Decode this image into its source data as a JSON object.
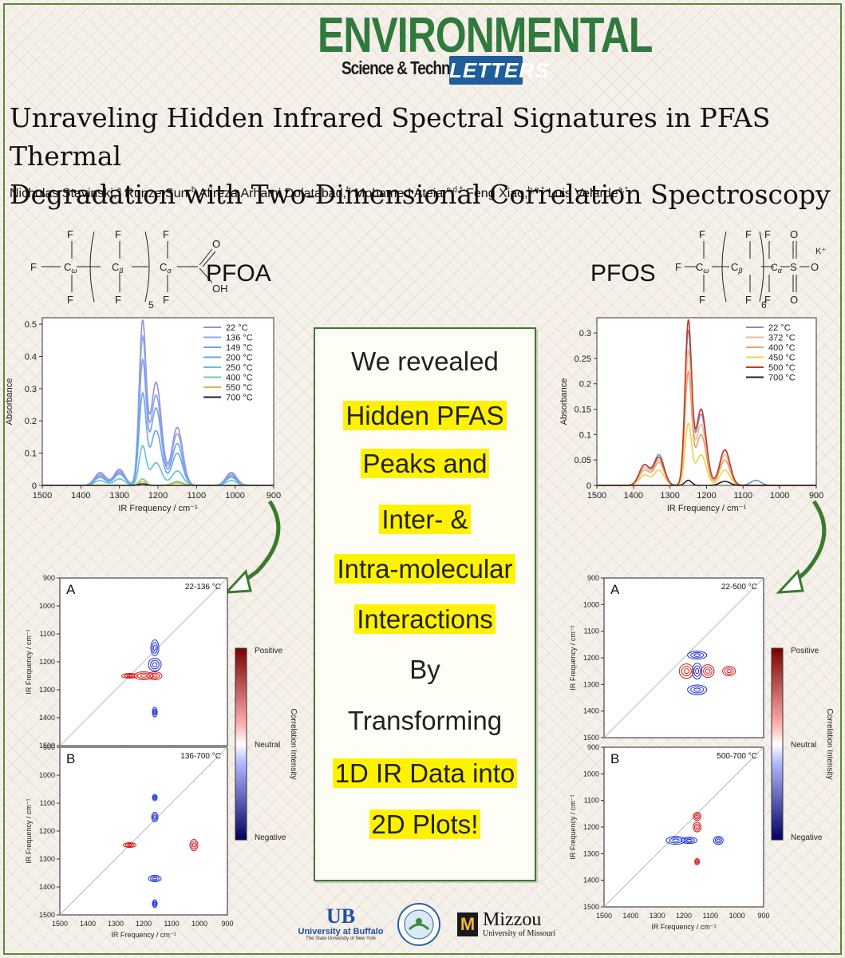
{
  "journal": {
    "line1": "ENVIRONMENTAL",
    "line2": "Science & Technology",
    "line3": "LETTERS"
  },
  "title_line1": "Unraveling Hidden Infrared Spectral Signatures in PFAS Thermal",
  "title_line2": "Degradation with Two-Dimensional Correlation Spectroscopy",
  "authors": [
    {
      "name": "Nicholas Stavinski,",
      "sup": "a"
    },
    {
      "name": "Runze Sun,",
      "sup": "b"
    },
    {
      "name": "Alireza Arhami Dolatabad,",
      "sup": "b"
    },
    {
      "name": "Mohamed Ateia,",
      "sup": "c,d,*"
    },
    {
      "name": "Feng Xiao,",
      "sup": "b,e,*"
    },
    {
      "name": "Luis Velarde",
      "sup": "a,*"
    }
  ],
  "center_box": {
    "l1": "We revealed",
    "l2": "Hidden PFAS",
    "l3": "Peaks and",
    "l4": "Inter- &",
    "l5": "Intra-molecular",
    "l6": "Interactions",
    "l7": "By",
    "l8": "Transforming",
    "l9": "1D IR Data into",
    "l10": "2D Plots!"
  },
  "structures": {
    "pfoa": {
      "name": "PFOA",
      "sub": "5"
    },
    "pfos": {
      "name": "PFOS",
      "sub": "6",
      "cation": "K⁺"
    },
    "atoms": {
      "F": "F",
      "O": "O",
      "OH": "OH",
      "S": "S"
    }
  },
  "colorbar": {
    "top": "Positive",
    "mid": "Neutral",
    "bottom": "Negative",
    "title": "Correlation Intensity"
  },
  "spectra": {
    "xlabel": "IR Frequency / cm⁻¹",
    "ylabel": "Absorbance",
    "xticks": [
      "1500",
      "1400",
      "1300",
      "1200",
      "1100",
      "1000",
      "900"
    ]
  },
  "maps": {
    "xlabel": "IR Frequency / cm⁻¹",
    "ylabel": "IR Frequency / cm⁻¹",
    "ticks": [
      "900",
      "1000",
      "1100",
      "1200",
      "1300",
      "1400",
      "1500"
    ],
    "xticks": [
      "1500",
      "1400",
      "1300",
      "1200",
      "1100",
      "1000",
      "900"
    ],
    "left_A": {
      "letter": "A",
      "range": "22-136 °C"
    },
    "left_B": {
      "letter": "B",
      "range": "136-700 °C"
    },
    "right_A": {
      "letter": "A",
      "range": "22-500 °C"
    },
    "right_B": {
      "letter": "B",
      "range": "500-700 °C"
    }
  },
  "logos": {
    "ub_name": "University at Buffalo",
    "ub_sub": "The State University of New York",
    "mizzou_name": "Mizzou",
    "mizzou_sub": "University of Missouri",
    "mizzou_mark": "M",
    "ub_mark": "UB"
  },
  "chart_data": [
    {
      "type": "line",
      "xlabel": "IR Frequency / cm⁻¹",
      "ylabel": "Absorbance",
      "xlim": [
        1500,
        900
      ],
      "ylim": [
        0,
        0.52
      ],
      "yticks": [
        0.0,
        0.1,
        0.2,
        0.3,
        0.4,
        0.5
      ],
      "legend": "top-right",
      "series": [
        {
          "name": "22 °C",
          "color": "#9b8fd9",
          "peaks": [
            [
              1350,
              0.04
            ],
            [
              1300,
              0.05
            ],
            [
              1240,
              0.5
            ],
            [
              1205,
              0.32
            ],
            [
              1150,
              0.18
            ],
            [
              1010,
              0.04
            ]
          ]
        },
        {
          "name": "136 °C",
          "color": "#8aa8ef",
          "peaks": [
            [
              1350,
              0.035
            ],
            [
              1300,
              0.045
            ],
            [
              1240,
              0.45
            ],
            [
              1205,
              0.28
            ],
            [
              1150,
              0.16
            ],
            [
              1010,
              0.035
            ]
          ]
        },
        {
          "name": "149 °C",
          "color": "#7d9ee6",
          "peaks": [
            [
              1350,
              0.03
            ],
            [
              1300,
              0.04
            ],
            [
              1240,
              0.38
            ],
            [
              1205,
              0.24
            ],
            [
              1150,
              0.13
            ],
            [
              1010,
              0.03
            ]
          ]
        },
        {
          "name": "200 °C",
          "color": "#6aa6e8",
          "peaks": [
            [
              1350,
              0.025
            ],
            [
              1300,
              0.035
            ],
            [
              1240,
              0.28
            ],
            [
              1205,
              0.17
            ],
            [
              1150,
              0.1
            ],
            [
              1010,
              0.025
            ]
          ]
        },
        {
          "name": "250 °C",
          "color": "#5fc1d6",
          "peaks": [
            [
              1350,
              0.015
            ],
            [
              1300,
              0.02
            ],
            [
              1240,
              0.12
            ],
            [
              1205,
              0.07
            ],
            [
              1150,
              0.045
            ],
            [
              1010,
              0.015
            ]
          ]
        },
        {
          "name": "400 °C",
          "color": "#6fd08e",
          "peaks": [
            [
              1240,
              0.02
            ],
            [
              1150,
              0.012
            ]
          ]
        },
        {
          "name": "550 °C",
          "color": "#e0b64a",
          "peaks": [
            [
              1240,
              0.012
            ],
            [
              1150,
              0.008
            ]
          ]
        },
        {
          "name": "700 °C",
          "color": "#222222",
          "peaks": [
            [
              1240,
              0.005
            ]
          ]
        }
      ]
    },
    {
      "type": "line",
      "xlabel": "IR Frequency / cm⁻¹",
      "ylabel": "Absorbance",
      "xlim": [
        1500,
        900
      ],
      "ylim": [
        0,
        0.33
      ],
      "yticks": [
        0.0,
        0.05,
        0.1,
        0.15,
        0.2,
        0.25,
        0.3
      ],
      "legend": "top-right",
      "series": [
        {
          "name": "22 °C",
          "color": "#7a8fc4",
          "peaks": [
            [
              1370,
              0.04
            ],
            [
              1330,
              0.06
            ],
            [
              1250,
              0.3
            ],
            [
              1215,
              0.14
            ],
            [
              1150,
              0.07
            ],
            [
              1065,
              0.01
            ]
          ]
        },
        {
          "name": "372 °C",
          "color": "#f0b98f",
          "peaks": [
            [
              1370,
              0.035
            ],
            [
              1330,
              0.05
            ],
            [
              1250,
              0.26
            ],
            [
              1215,
              0.12
            ],
            [
              1150,
              0.06
            ]
          ]
        },
        {
          "name": "400 °C",
          "color": "#e6a070",
          "peaks": [
            [
              1370,
              0.03
            ],
            [
              1330,
              0.045
            ],
            [
              1250,
              0.22
            ],
            [
              1215,
              0.1
            ],
            [
              1150,
              0.05
            ]
          ]
        },
        {
          "name": "450 °C",
          "color": "#f2d04a",
          "peaks": [
            [
              1370,
              0.02
            ],
            [
              1330,
              0.03
            ],
            [
              1250,
              0.12
            ],
            [
              1215,
              0.06
            ],
            [
              1150,
              0.03
            ]
          ]
        },
        {
          "name": "500 °C",
          "color": "#c0392b",
          "peaks": [
            [
              1370,
              0.04
            ],
            [
              1330,
              0.055
            ],
            [
              1250,
              0.32
            ],
            [
              1215,
              0.15
            ],
            [
              1150,
              0.07
            ]
          ]
        },
        {
          "name": "700 °C",
          "color": "#222222",
          "peaks": [
            [
              1250,
              0.01
            ],
            [
              1150,
              0.008
            ]
          ]
        }
      ]
    }
  ]
}
